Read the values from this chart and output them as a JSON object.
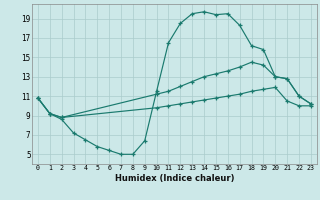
{
  "xlabel": "Humidex (Indice chaleur)",
  "bg_color": "#cce8e8",
  "grid_color": "#aacccc",
  "line_color": "#1a7a6e",
  "xlim": [
    -0.5,
    23.5
  ],
  "ylim": [
    4.0,
    20.5
  ],
  "xticks": [
    0,
    1,
    2,
    3,
    4,
    5,
    6,
    7,
    8,
    9,
    10,
    11,
    12,
    13,
    14,
    15,
    16,
    17,
    18,
    19,
    20,
    21,
    22,
    23
  ],
  "yticks": [
    5,
    7,
    9,
    11,
    13,
    15,
    17,
    19
  ],
  "line1_x": [
    0,
    1,
    2,
    3,
    4,
    5,
    6,
    7,
    8,
    9,
    10,
    11,
    12,
    13,
    14,
    15,
    16,
    17,
    18,
    19,
    20,
    21,
    22,
    23
  ],
  "line1_y": [
    10.8,
    9.2,
    8.6,
    7.2,
    6.5,
    5.8,
    5.4,
    5.0,
    5.0,
    6.4,
    11.5,
    16.5,
    18.5,
    19.5,
    19.7,
    19.4,
    19.5,
    18.3,
    16.2,
    15.8,
    13.0,
    12.8,
    11.0,
    10.2
  ],
  "line2_x": [
    0,
    1,
    2,
    10,
    11,
    12,
    13,
    14,
    15,
    16,
    17,
    18,
    19,
    20,
    21,
    22,
    23
  ],
  "line2_y": [
    10.8,
    9.2,
    8.8,
    11.2,
    11.5,
    12.0,
    12.5,
    13.0,
    13.3,
    13.6,
    14.0,
    14.5,
    14.2,
    13.0,
    12.8,
    11.0,
    10.2
  ],
  "line3_x": [
    0,
    1,
    2,
    10,
    11,
    12,
    13,
    14,
    15,
    16,
    17,
    18,
    19,
    20,
    21,
    22,
    23
  ],
  "line3_y": [
    10.8,
    9.2,
    8.8,
    9.8,
    10.0,
    10.2,
    10.4,
    10.6,
    10.8,
    11.0,
    11.2,
    11.5,
    11.7,
    11.9,
    10.5,
    10.0,
    10.0
  ]
}
